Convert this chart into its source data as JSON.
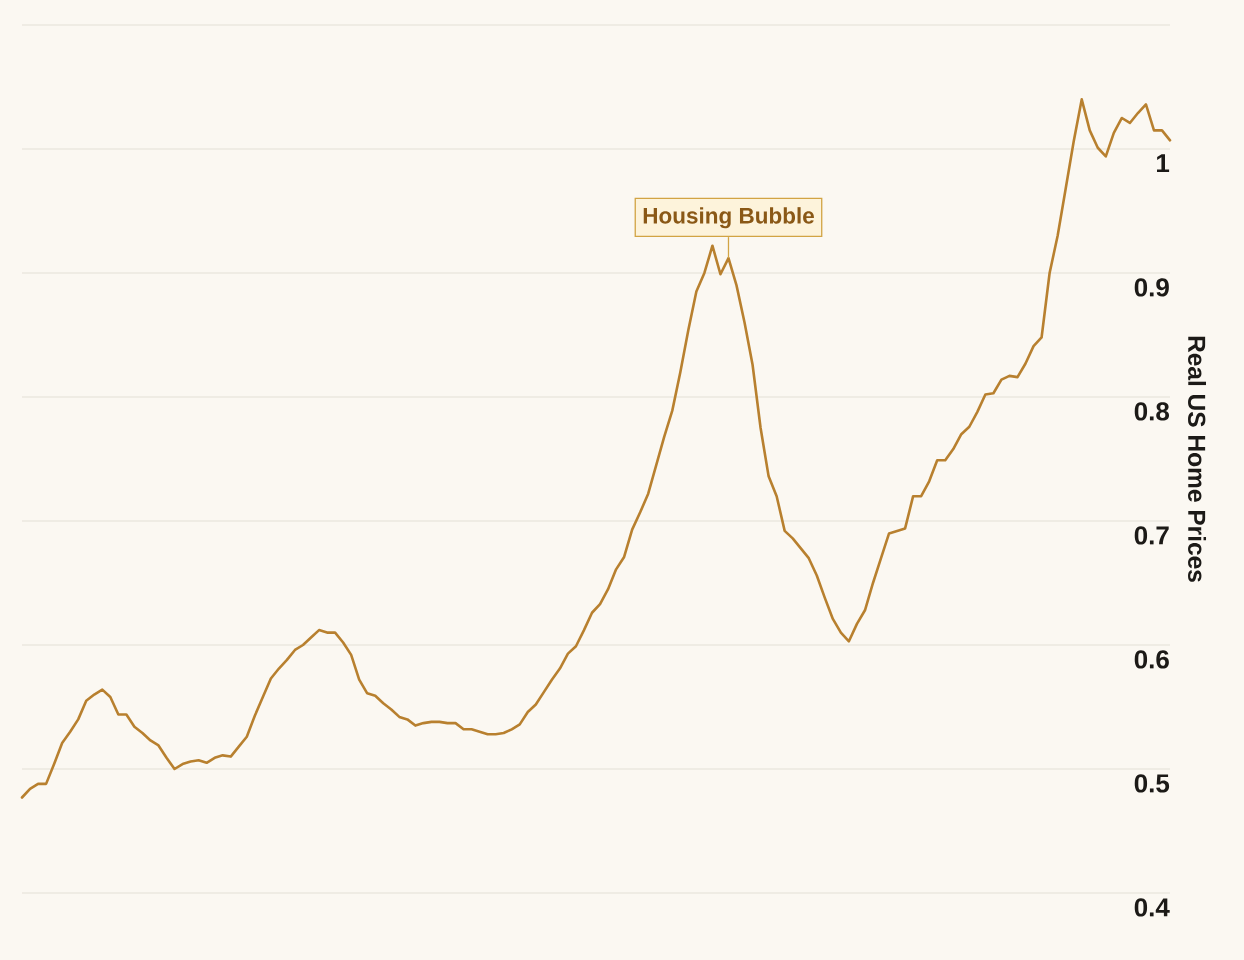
{
  "chart_data": {
    "type": "line",
    "ylabel": "Real US Home Prices",
    "color": "#b8802f",
    "line_style": "solid",
    "grid": "y",
    "tick_labels": "y",
    "ylim": [
      0.4,
      1.1
    ],
    "yticks": [
      0.4,
      0.5,
      0.6,
      0.7,
      0.8,
      0.9,
      1,
      {
        "value": 1.1,
        "label": null
      }
    ],
    "categories": [
      null,
      null,
      null,
      null,
      null,
      null,
      null,
      null,
      null,
      null,
      null,
      null,
      null,
      null,
      null,
      null,
      null,
      null,
      null,
      null,
      null,
      null,
      null,
      null,
      null,
      null,
      null,
      null,
      null,
      null,
      null,
      null,
      null,
      null,
      null,
      null,
      null,
      null,
      null,
      null,
      null,
      null,
      null,
      null,
      null,
      null,
      null,
      null,
      null,
      null,
      null,
      null,
      null,
      null,
      null,
      null,
      null,
      null,
      null,
      null,
      null,
      null,
      null,
      null,
      null,
      null,
      null,
      null,
      null,
      null,
      null,
      null,
      null,
      null,
      null,
      null,
      null,
      null,
      null,
      null,
      null,
      null,
      null,
      null,
      null,
      null,
      null,
      null,
      null,
      null,
      null,
      null,
      null,
      null,
      null,
      null,
      null,
      null,
      null,
      null,
      null,
      null,
      null,
      null,
      null,
      null,
      null,
      null,
      null,
      null,
      null,
      null,
      null,
      null,
      null,
      null,
      null,
      null,
      null,
      null,
      null,
      null,
      null,
      null,
      null,
      null,
      null,
      null,
      null,
      null,
      null,
      null,
      null,
      null,
      null,
      null,
      null,
      null,
      null,
      null,
      null,
      null,
      null,
      null
    ],
    "values": [
      0.477,
      0.484,
      0.488,
      0.488,
      0.504,
      0.521,
      0.53,
      0.54,
      0.555,
      0.56,
      0.564,
      0.558,
      0.544,
      0.544,
      0.534,
      0.529,
      0.523,
      0.519,
      0.509,
      0.5,
      0.504,
      0.506,
      0.507,
      0.505,
      0.509,
      0.511,
      0.51,
      0.518,
      0.526,
      0.543,
      0.558,
      0.573,
      0.581,
      0.588,
      0.596,
      0.6,
      0.606,
      0.612,
      0.61,
      0.61,
      0.602,
      0.592,
      0.572,
      0.561,
      0.559,
      0.553,
      0.548,
      0.542,
      0.54,
      0.535,
      0.537,
      0.538,
      0.538,
      0.537,
      0.537,
      0.532,
      0.532,
      0.53,
      0.528,
      0.528,
      0.529,
      0.532,
      0.536,
      0.546,
      0.552,
      0.562,
      0.572,
      0.581,
      0.593,
      0.599,
      0.612,
      0.626,
      0.633,
      0.645,
      0.661,
      0.671,
      0.693,
      0.707,
      0.722,
      0.745,
      0.768,
      0.789,
      0.82,
      0.854,
      0.885,
      0.9,
      0.922,
      0.899,
      0.912,
      0.89,
      0.86,
      0.826,
      0.775,
      0.736,
      0.72,
      0.692,
      0.686,
      0.678,
      0.67,
      0.656,
      0.638,
      0.621,
      0.61,
      0.603,
      0.617,
      0.628,
      0.65,
      0.67,
      0.69,
      0.692,
      0.694,
      0.72,
      0.72,
      0.732,
      0.749,
      0.749,
      0.758,
      0.77,
      0.776,
      0.788,
      0.802,
      0.803,
      0.814,
      0.817,
      0.816,
      0.827,
      0.841,
      0.848,
      0.9,
      0.93,
      0.968,
      1.006,
      1.04,
      1.015,
      1.001,
      0.994,
      1.013,
      1.025,
      1.021,
      1.029,
      1.036,
      1.015,
      1.015,
      1.007
    ],
    "annotations": [
      {
        "text": "Housing Bubble",
        "y": 0.912
      }
    ]
  }
}
